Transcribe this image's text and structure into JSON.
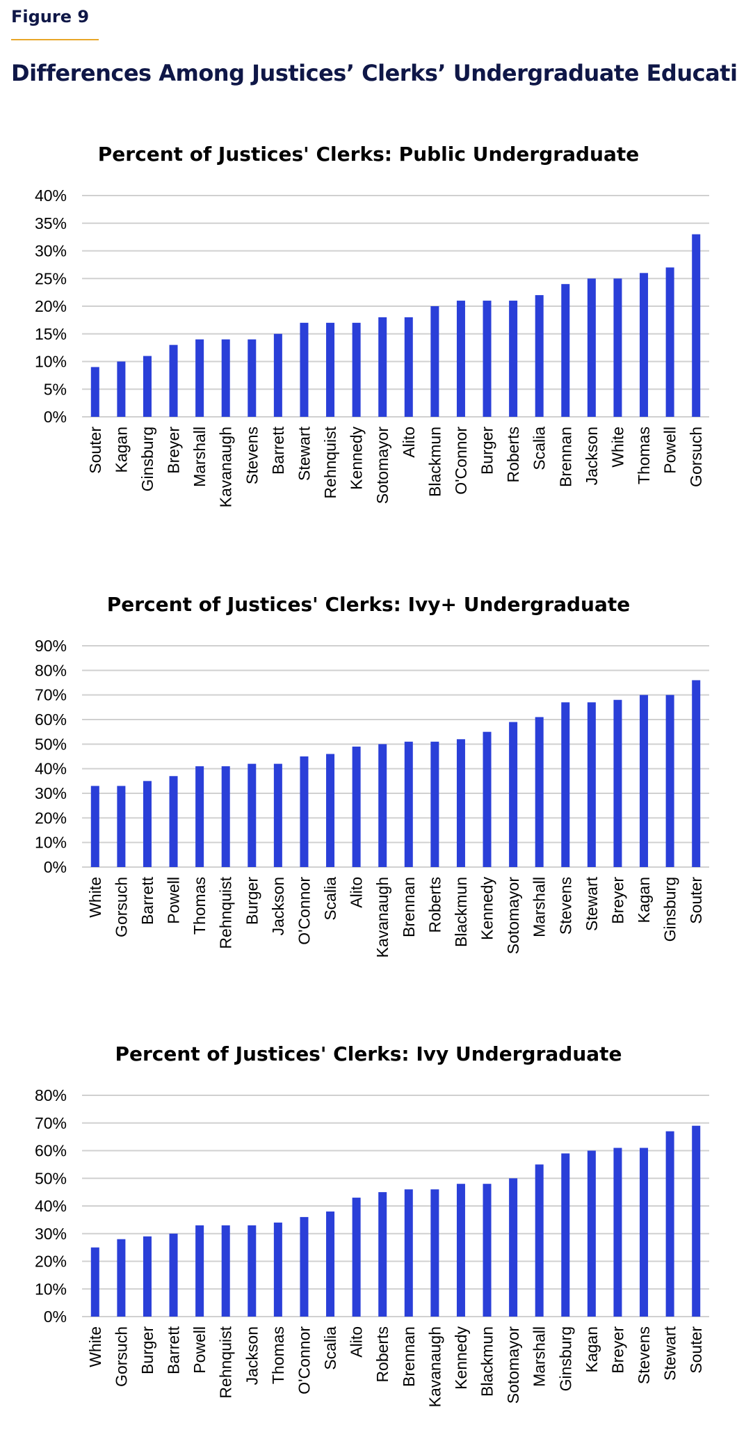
{
  "figure": {
    "label": "Figure 9",
    "title": "Differences Among Justices’ Clerks’ Undergraduate Education"
  },
  "colors": {
    "bar": "#2a3fd8",
    "grid": "#d0d0d0",
    "title": "#0f1747",
    "rule": "#e8a628"
  },
  "chart_data": [
    {
      "type": "bar",
      "title": "Percent of Justices' Clerks: Public Undergraduate",
      "xlabel": "",
      "ylabel": "",
      "ylim": [
        0,
        40
      ],
      "yticks": [
        "0%",
        "5%",
        "10%",
        "15%",
        "20%",
        "25%",
        "30%",
        "35%",
        "40%"
      ],
      "ytick_values": [
        0,
        5,
        10,
        15,
        20,
        25,
        30,
        35,
        40
      ],
      "grid": true,
      "legend": "none",
      "categories": [
        "Souter",
        "Kagan",
        "Ginsburg",
        "Breyer",
        "Marshall",
        "Kavanaugh",
        "Stevens",
        "Barrett",
        "Stewart",
        "Rehnquist",
        "Kennedy",
        "Sotomayor",
        "Alito",
        "Blackmun",
        "O'Connor",
        "Burger",
        "Roberts",
        "Scalia",
        "Brennan",
        "Jackson",
        "White",
        "Thomas",
        "Powell",
        "Gorsuch"
      ],
      "values": [
        9,
        10,
        11,
        13,
        14,
        14,
        14,
        15,
        17,
        17,
        17,
        18,
        18,
        20,
        21,
        21,
        21,
        22,
        24,
        25,
        25,
        26,
        27,
        33
      ]
    },
    {
      "type": "bar",
      "title": "Percent of Justices' Clerks: Ivy+ Undergraduate",
      "xlabel": "",
      "ylabel": "",
      "ylim": [
        0,
        90
      ],
      "yticks": [
        "0%",
        "10%",
        "20%",
        "30%",
        "40%",
        "50%",
        "60%",
        "70%",
        "80%",
        "90%"
      ],
      "ytick_values": [
        0,
        10,
        20,
        30,
        40,
        50,
        60,
        70,
        80,
        90
      ],
      "grid": true,
      "legend": "none",
      "categories": [
        "White",
        "Gorsuch",
        "Barrett",
        "Powell",
        "Thomas",
        "Rehnquist",
        "Burger",
        "Jackson",
        "O'Connor",
        "Scalia",
        "Alito",
        "Kavanaugh",
        "Brennan",
        "Roberts",
        "Blackmun",
        "Kennedy",
        "Sotomayor",
        "Marshall",
        "Stevens",
        "Stewart",
        "Breyer",
        "Kagan",
        "Ginsburg",
        "Souter"
      ],
      "values": [
        33,
        33,
        35,
        37,
        41,
        41,
        42,
        42,
        45,
        46,
        49,
        50,
        51,
        51,
        52,
        55,
        59,
        61,
        67,
        67,
        68,
        70,
        70,
        76
      ]
    },
    {
      "type": "bar",
      "title": "Percent of Justices' Clerks: Ivy Undergraduate",
      "xlabel": "",
      "ylabel": "",
      "ylim": [
        0,
        80
      ],
      "yticks": [
        "0%",
        "10%",
        "20%",
        "30%",
        "40%",
        "50%",
        "60%",
        "70%",
        "80%"
      ],
      "ytick_values": [
        0,
        10,
        20,
        30,
        40,
        50,
        60,
        70,
        80
      ],
      "grid": true,
      "legend": "none",
      "categories": [
        "White",
        "Gorsuch",
        "Burger",
        "Barrett",
        "Powell",
        "Rehnquist",
        "Jackson",
        "Thomas",
        "O'Connor",
        "Scalia",
        "Alito",
        "Roberts",
        "Brennan",
        "Kavanaugh",
        "Kennedy",
        "Blackmun",
        "Sotomayor",
        "Marshall",
        "Ginsburg",
        "Kagan",
        "Breyer",
        "Stevens",
        "Stewart",
        "Souter"
      ],
      "values": [
        25,
        28,
        29,
        30,
        33,
        33,
        33,
        34,
        36,
        38,
        43,
        45,
        46,
        46,
        48,
        48,
        50,
        55,
        59,
        60,
        61,
        61,
        67,
        69
      ]
    }
  ]
}
